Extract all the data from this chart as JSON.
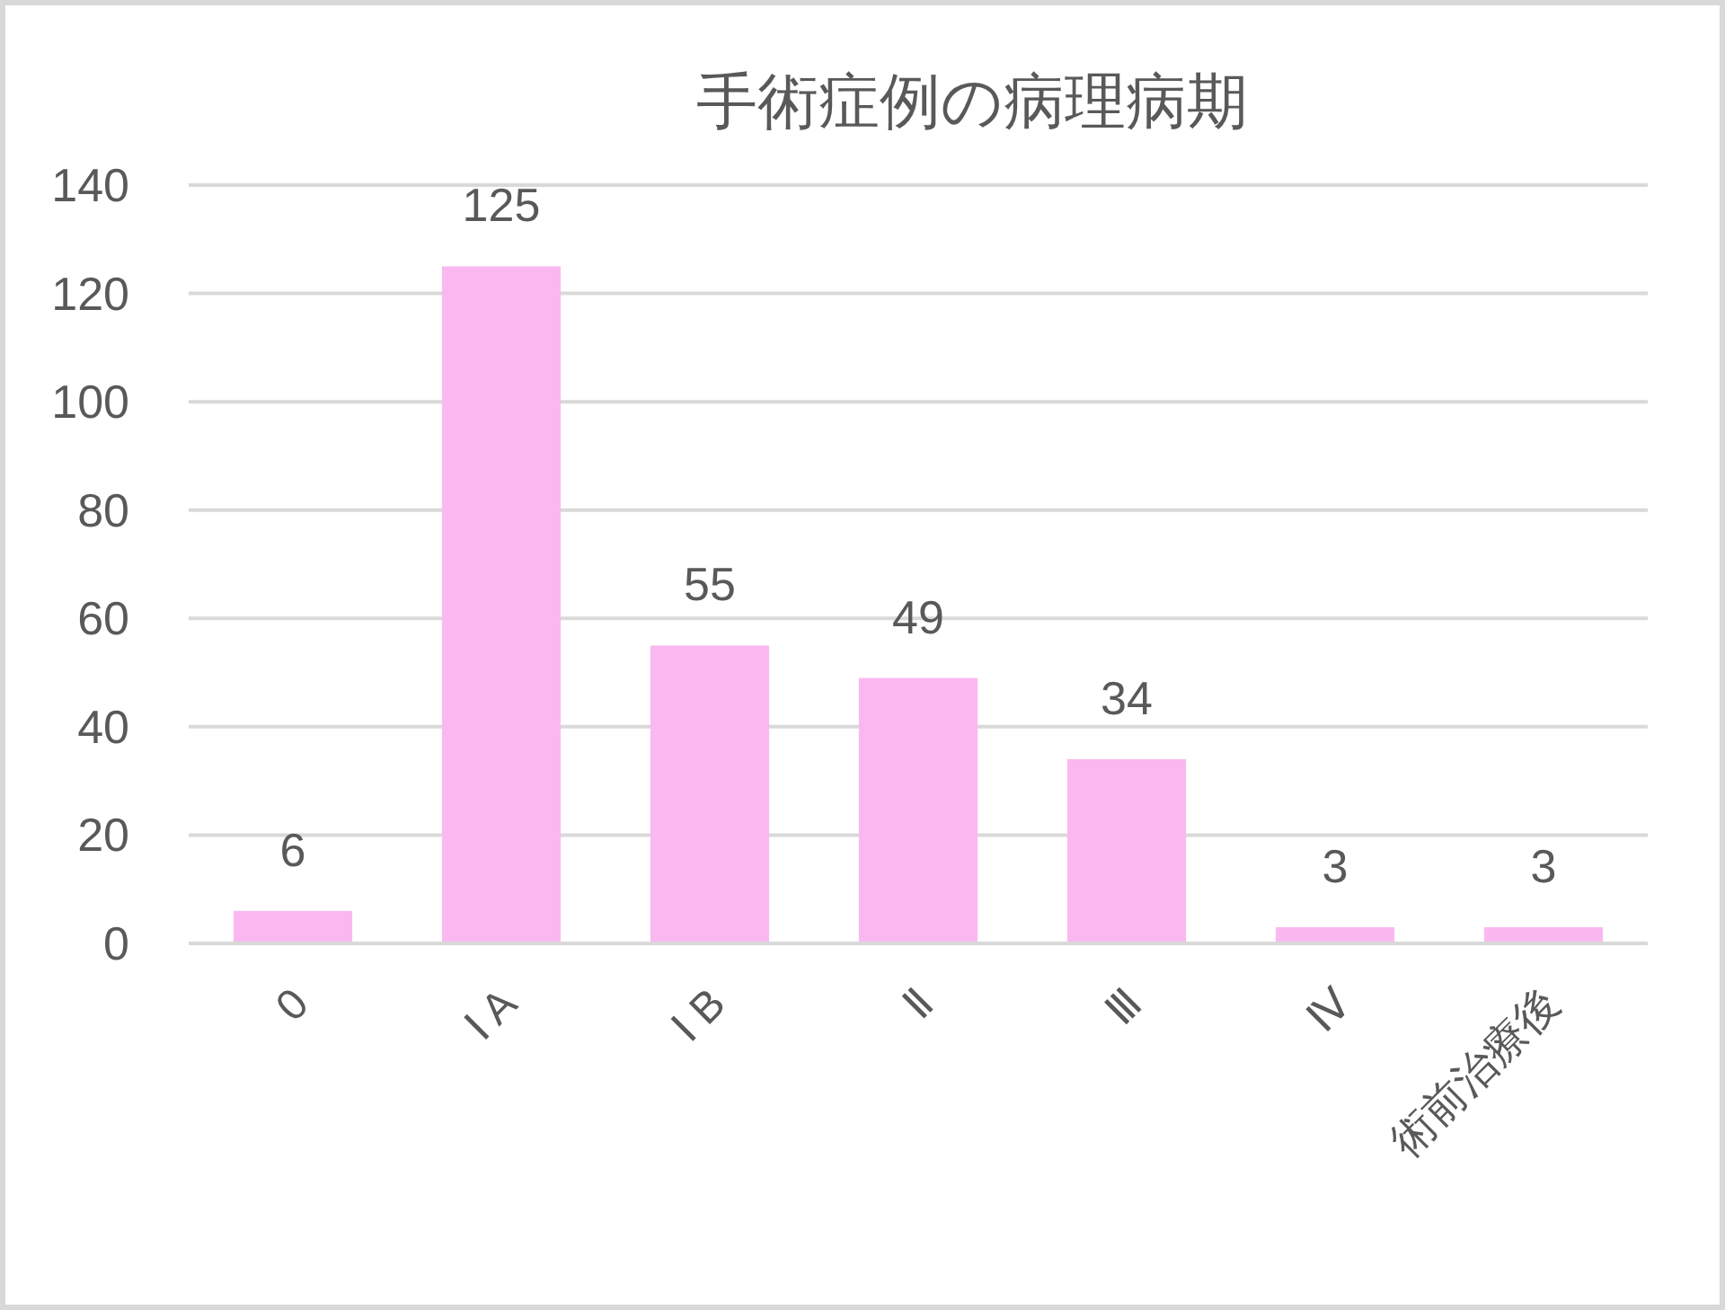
{
  "chart_data": {
    "type": "bar",
    "title": "手術症例の病理病期",
    "categories": [
      "0",
      "Ⅰ A",
      "Ⅰ B",
      "Ⅱ",
      "Ⅲ",
      "Ⅳ",
      "術前治療後"
    ],
    "values": [
      6,
      125,
      55,
      49,
      34,
      3,
      3
    ],
    "color": "#f9b9f0",
    "ylim": [
      0,
      140
    ],
    "yticks": [
      0,
      20,
      40,
      60,
      80,
      100,
      120,
      140
    ],
    "grid": "y",
    "data_labels": true
  }
}
